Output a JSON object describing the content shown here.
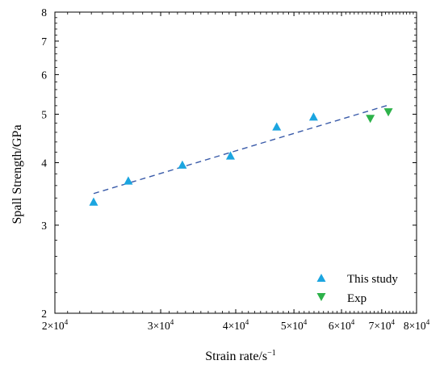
{
  "chart_data": {
    "type": "scatter",
    "xscale": "log",
    "yscale": "log",
    "xlim": [
      20000,
      80000
    ],
    "ylim": [
      2,
      8
    ],
    "xlabel": "Strain rate/s",
    "xlabel_sup": "−1",
    "ylabel": "Spall Strength/GPa",
    "x_ticks": [
      {
        "value": 20000,
        "mant": "2",
        "exp": "4"
      },
      {
        "value": 30000,
        "mant": "3",
        "exp": "4"
      },
      {
        "value": 40000,
        "mant": "4",
        "exp": "4"
      },
      {
        "value": 50000,
        "mant": "5",
        "exp": "4"
      },
      {
        "value": 60000,
        "mant": "6",
        "exp": "4"
      },
      {
        "value": 70000,
        "mant": "7",
        "exp": "4"
      },
      {
        "value": 80000,
        "mant": "8",
        "exp": "4"
      }
    ],
    "x_tick_mult": "×10",
    "y_ticks": [
      {
        "value": 2,
        "label": "2"
      },
      {
        "value": 3,
        "label": "3"
      },
      {
        "value": 4,
        "label": "4"
      },
      {
        "value": 5,
        "label": "5"
      },
      {
        "value": 6,
        "label": "6"
      },
      {
        "value": 7,
        "label": "7"
      },
      {
        "value": 8,
        "label": "8"
      }
    ],
    "series": [
      {
        "name": "This study",
        "marker": "triangle-up",
        "color": "#1BA5E0",
        "points": [
          {
            "x": 23200,
            "y": 3.34
          },
          {
            "x": 26500,
            "y": 3.68
          },
          {
            "x": 32600,
            "y": 3.96
          },
          {
            "x": 39200,
            "y": 4.13
          },
          {
            "x": 46800,
            "y": 4.72
          },
          {
            "x": 53900,
            "y": 4.94
          }
        ]
      },
      {
        "name": "Exp",
        "marker": "triangle-down",
        "color": "#2DB24A",
        "points": [
          {
            "x": 67000,
            "y": 4.9
          },
          {
            "x": 71800,
            "y": 5.05
          }
        ]
      }
    ],
    "fit_line": {
      "style": "dashed",
      "color": "#3A5BA9",
      "points": [
        {
          "x": 23200,
          "y": 3.47
        },
        {
          "x": 72000,
          "y": 5.22
        }
      ]
    },
    "legend_position": "bottom-right",
    "grid": false
  }
}
